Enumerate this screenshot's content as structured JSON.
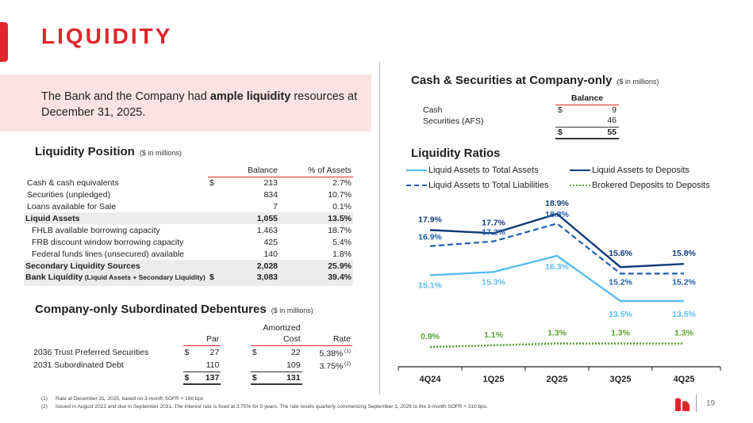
{
  "page": {
    "title": "LIQUIDITY",
    "intro_pre": "The Bank and the Company had ",
    "intro_bold": "ample liquidity",
    "intro_post": " resources at December 31, 2025.",
    "page_number": "19"
  },
  "liquidity_position": {
    "heading": "Liquidity Position",
    "units": "($ in millions)",
    "col_balance": "Balance",
    "col_pct": "% of Assets",
    "rows": [
      {
        "label": "Cash & cash equivalents",
        "dollar": "$",
        "balance": "213",
        "pct": "2.7%",
        "style": "normal"
      },
      {
        "label": "Securities (unpledged)",
        "dollar": "",
        "balance": "834",
        "pct": "10.7%",
        "style": "normal"
      },
      {
        "label": "Loans available for Sale",
        "dollar": "",
        "balance": "7",
        "pct": "0.1%",
        "style": "normal"
      },
      {
        "label": "Liquid Assets",
        "dollar": "",
        "balance": "1,055",
        "pct": "13.5%",
        "style": "total"
      },
      {
        "label": "FHLB available borrowing capacity",
        "dollar": "",
        "balance": "1,463",
        "pct": "18.7%",
        "style": "indent"
      },
      {
        "label": "FRB discount window borrowing capacity",
        "dollar": "",
        "balance": "425",
        "pct": "5.4%",
        "style": "indent"
      },
      {
        "label": "Federal funds lines (unsecured) available",
        "dollar": "",
        "balance": "140",
        "pct": "1.8%",
        "style": "indent"
      },
      {
        "label": "Secondary Liquidity Sources",
        "dollar": "",
        "balance": "2,028",
        "pct": "25.9%",
        "style": "total"
      }
    ],
    "bank_liquidity": {
      "label": "Bank Liquidity",
      "sublabel": "(Liquid Assets + Secondary Liquidity)",
      "dollar": "$",
      "balance": "3,083",
      "pct": "39.4%"
    }
  },
  "cash_securities": {
    "heading": "Cash & Securities at Company-only",
    "units": "($ in millions)",
    "col_balance": "Balance",
    "rows": [
      {
        "label": "Cash",
        "dollar": "$",
        "value": "9"
      },
      {
        "label": "Securities (AFS)",
        "dollar": "",
        "value": "46"
      }
    ],
    "total": {
      "dollar": "$",
      "value": "55"
    }
  },
  "debentures": {
    "heading": "Company-only Subordinated Debentures",
    "units": "($ in millions)",
    "col_amortized": "Amortized",
    "col_par": "Par",
    "col_cost": "Cost",
    "col_rate": "Rate",
    "rows": [
      {
        "label": "2036 Trust Preferred Securities",
        "par_dollar": "$",
        "par": "27",
        "cost_dollar": "$",
        "cost": "22",
        "rate": "5.38%",
        "note": "(1)"
      },
      {
        "label": "2031 Subordinated Debt",
        "par_dollar": "",
        "par": "110",
        "cost_dollar": "",
        "cost": "109",
        "rate": "3.75%",
        "note": "(2)"
      }
    ],
    "total": {
      "par_dollar": "$",
      "par": "137",
      "cost_dollar": "$",
      "cost": "131"
    }
  },
  "liquidity_ratios": {
    "heading": "Liquidity Ratios"
  },
  "chart_data": {
    "type": "line",
    "title": "Liquidity Ratios",
    "categories": [
      "4Q24",
      "1Q25",
      "2Q25",
      "3Q25",
      "4Q25"
    ],
    "ylim": [
      0,
      21
    ],
    "grid": false,
    "legend_position": "top",
    "series": [
      {
        "name": "Liquid Assets to Total Assets",
        "values": [
          15.1,
          15.3,
          16.3,
          13.5,
          13.5
        ],
        "labels": [
          "15.1%",
          "15.3%",
          "16.3%",
          "13.5%",
          "13.5%"
        ],
        "color": "#5bbcf0",
        "dash": "solid",
        "label_pos": "below"
      },
      {
        "name": "Liquid Assets to Deposits",
        "values": [
          17.9,
          17.7,
          18.9,
          15.6,
          15.8
        ],
        "labels": [
          "17.9%",
          "17.7%",
          "18.9%",
          "15.6%",
          "15.8%"
        ],
        "color": "#0f3b78",
        "dash": "solid",
        "label_pos": "above"
      },
      {
        "name": "Liquid Assets to Total Liabilities",
        "values": [
          16.9,
          17.2,
          18.3,
          15.2,
          15.2
        ],
        "labels": [
          "16.9%",
          "17.2%",
          "18.3%",
          "15.2%",
          "15.2%"
        ],
        "color": "#1f5fae",
        "dash": "dashed",
        "label_pos": "mixed"
      },
      {
        "name": "Brokered Deposits to Deposits",
        "values": [
          0.9,
          1.1,
          1.3,
          1.3,
          1.3
        ],
        "labels": [
          "0.9%",
          "1.1%",
          "1.3%",
          "1.3%",
          "1.3%"
        ],
        "color": "#5a9e2f",
        "dash": "dotted",
        "label_pos": "above"
      }
    ]
  },
  "footnotes": [
    {
      "num": "(1)",
      "text": "Rate at December 31, 2025, based on 3-month SOFR + 166 bps"
    },
    {
      "num": "(2)",
      "text": "Issued in August 2021 and due in September 2031. The interest rate is fixed at 3.75% for 5 years. The rate resets quarterly commencing September 1, 2026 to the 3-month SOFR + 310 bps."
    }
  ]
}
